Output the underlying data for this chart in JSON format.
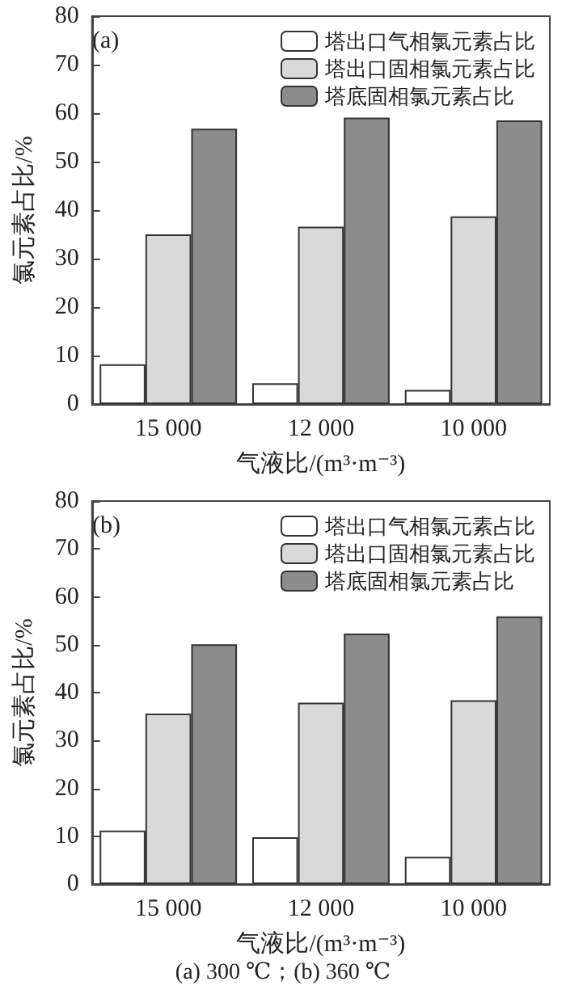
{
  "chart_data": [
    {
      "type": "bar",
      "categories": [
        "15 000",
        "12 000",
        "10 000"
      ],
      "xlabel": "气液比/(m³·m⁻³)",
      "ylabel": "氯元素占比/%",
      "ylim": [
        0,
        80
      ],
      "yticks": [
        0,
        10,
        20,
        30,
        40,
        50,
        60,
        70,
        80
      ],
      "grid": false,
      "legend": "top right",
      "annotations": [
        "(a)"
      ],
      "series": [
        {
          "name": "塔出口气相氯元素占比",
          "color": "#ffffff",
          "values": [
            8.2,
            4.3,
            2.9
          ]
        },
        {
          "name": "塔出口固相氯元素占比",
          "color": "#d9d9d9",
          "values": [
            35.0,
            36.6,
            38.7
          ]
        },
        {
          "name": "塔底固相氯元素占比",
          "color": "#8c8c8c",
          "values": [
            56.8,
            59.1,
            58.5
          ]
        }
      ]
    },
    {
      "type": "bar",
      "categories": [
        "15 000",
        "12 000",
        "10 000"
      ],
      "xlabel": "气液比/(m³·m⁻³)",
      "ylabel": "氯元素占比/%",
      "ylim": [
        0,
        80
      ],
      "yticks": [
        0,
        10,
        20,
        30,
        40,
        50,
        60,
        70,
        80
      ],
      "grid": false,
      "legend": "top right",
      "annotations": [
        "(b)",
        "(a) 300 ℃；(b) 360 ℃"
      ],
      "series": [
        {
          "name": "塔出口气相氯元素占比",
          "color": "#ffffff",
          "values": [
            11.2,
            9.8,
            5.7
          ]
        },
        {
          "name": "塔出口固相氯元素占比",
          "color": "#d9d9d9",
          "values": [
            35.6,
            37.9,
            38.4
          ]
        },
        {
          "name": "塔底固相氯元素占比",
          "color": "#8c8c8c",
          "values": [
            50.1,
            52.3,
            55.9
          ]
        }
      ]
    }
  ]
}
